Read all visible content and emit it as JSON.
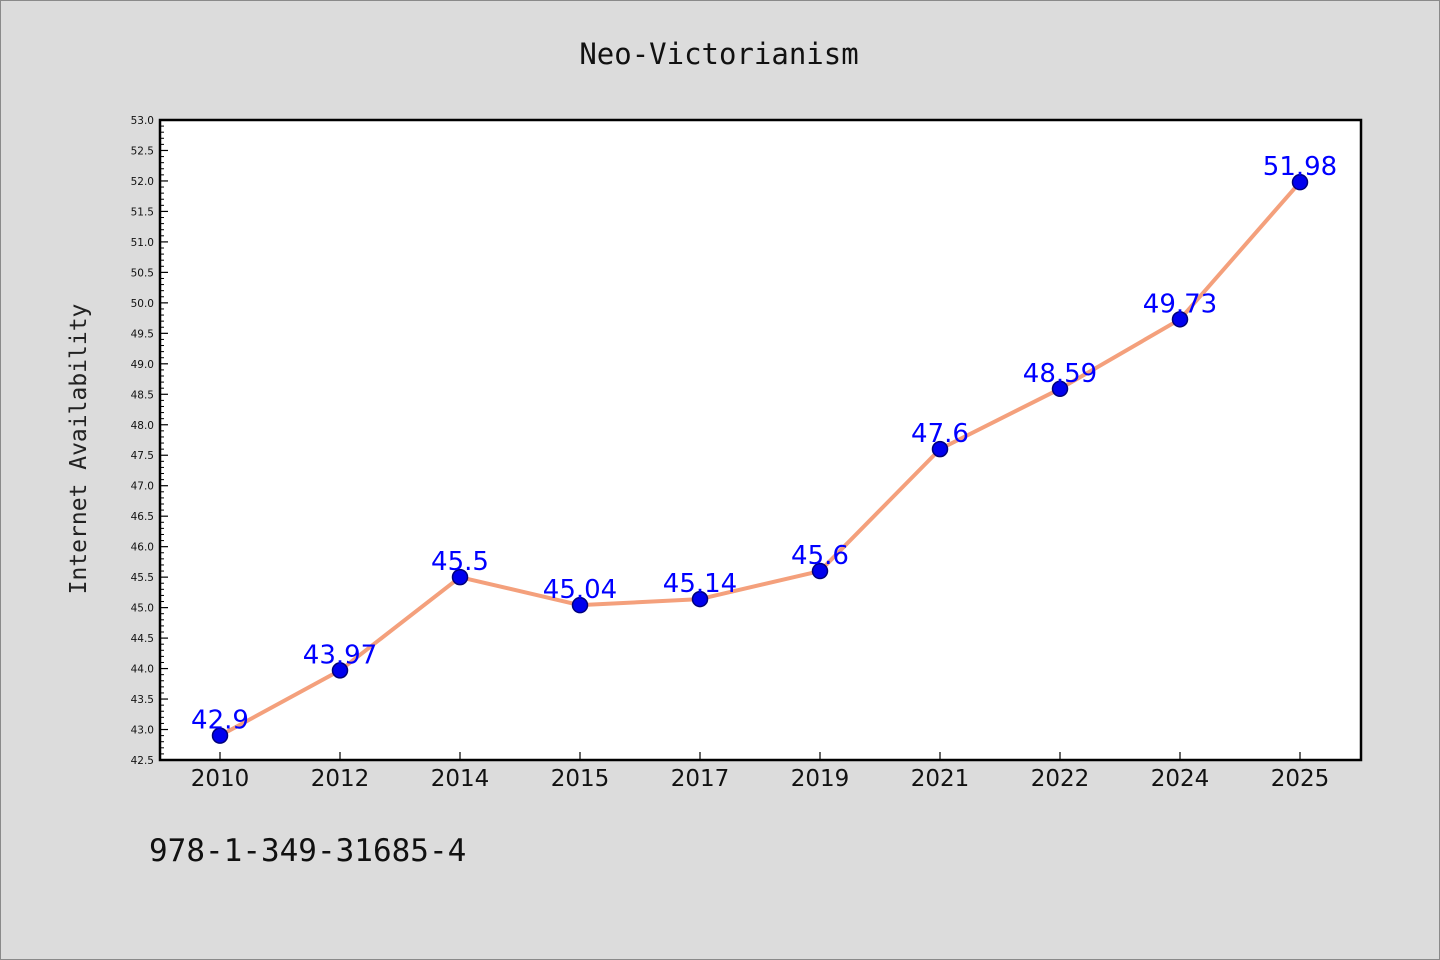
{
  "chart_data": {
    "type": "line",
    "title": "Neo-Victorianism",
    "xlabel": "",
    "ylabel": "Internet Availability",
    "categories": [
      "2010",
      "2012",
      "2014",
      "2015",
      "2017",
      "2019",
      "2021",
      "2022",
      "2024",
      "2025"
    ],
    "series": [
      {
        "values": [
          42.9,
          43.97,
          45.5,
          45.04,
          45.14,
          45.6,
          47.6,
          48.59,
          49.73,
          51.98
        ],
        "labels": [
          "42.9",
          "43.97",
          "45.5",
          "45.04",
          "45.14",
          "45.6",
          "47.6",
          "48.59",
          "49.73",
          "51.98"
        ]
      }
    ],
    "ylim": [
      42.5,
      53.0
    ],
    "y_ticks": [
      "42.5",
      "43.0",
      "43.5",
      "44.0",
      "44.5",
      "45.0",
      "45.5",
      "46.0",
      "46.5",
      "47.0",
      "47.5",
      "48.0",
      "48.5",
      "49.0",
      "49.5",
      "50.0",
      "50.5",
      "51.0",
      "51.5",
      "52.0",
      "52.5",
      "53.0"
    ],
    "grid": false,
    "line_color": "#f4a07c",
    "marker_color": "#0000ee",
    "label_color": "#0000ff"
  },
  "footer": {
    "isbn": "978-1-349-31685-4"
  }
}
